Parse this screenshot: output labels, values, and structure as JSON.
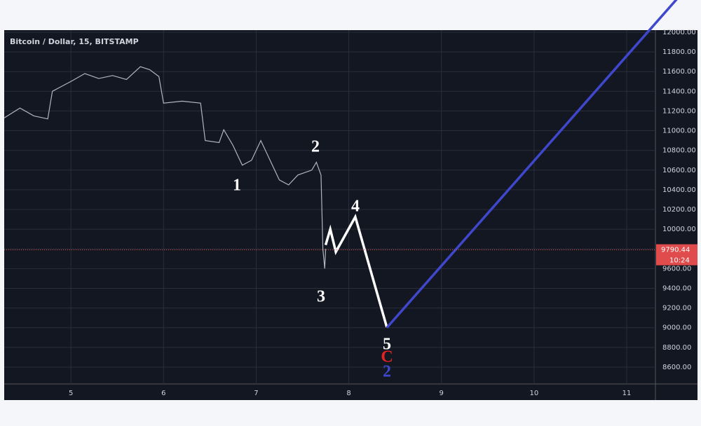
{
  "chart_data": {
    "type": "line",
    "title": "Bitcoin / Dollar, 15, BITSTAMP",
    "xlim": [
      4.28,
      11.31
    ],
    "ylim": [
      8429,
      12021
    ],
    "xticks": [
      5,
      6,
      7,
      8,
      9,
      10,
      11
    ],
    "yticks": [
      {
        "value": 8600,
        "label": "8600.00"
      },
      {
        "value": 8800,
        "label": "8800.00"
      },
      {
        "value": 9000,
        "label": "9000.00"
      },
      {
        "value": 9200,
        "label": "9200.00"
      },
      {
        "value": 9400,
        "label": "9400.00"
      },
      {
        "value": 9600,
        "label": "9600.00"
      },
      {
        "value": 9800,
        "label": "9800.00"
      },
      {
        "value": 10000,
        "label": "10000.00"
      },
      {
        "value": 10200,
        "label": "10200.00"
      },
      {
        "value": 10400,
        "label": "10400.00"
      },
      {
        "value": 10600,
        "label": "10600.00"
      },
      {
        "value": 10800,
        "label": "10800.00"
      },
      {
        "value": 11000,
        "label": "11000.00"
      },
      {
        "value": 11200,
        "label": "11200.00"
      },
      {
        "value": 11400,
        "label": "11400.00"
      },
      {
        "value": 11600,
        "label": "11600.00"
      },
      {
        "value": 11800,
        "label": "11800.00"
      },
      {
        "value": 12000,
        "label": "12000.00"
      }
    ],
    "grid": true,
    "series": [
      {
        "color": "#b2b5be",
        "x": [
          4.28,
          4.45,
          4.6,
          4.75,
          4.8,
          4.9,
          5.0,
          5.15,
          5.3,
          5.45,
          5.6,
          5.75,
          5.85,
          5.95,
          6.0,
          6.2,
          6.4,
          6.45,
          6.6,
          6.65,
          6.75,
          6.85,
          6.95,
          7.05,
          7.15,
          7.25,
          7.35,
          7.45,
          7.6,
          7.65,
          7.7,
          7.72,
          7.74,
          7.75
        ],
        "values": [
          11130,
          11230,
          11150,
          11120,
          11400,
          11450,
          11500,
          11580,
          11530,
          11560,
          11520,
          11650,
          11620,
          11550,
          11280,
          11300,
          11280,
          10900,
          10880,
          11010,
          10850,
          10650,
          10700,
          10900,
          10700,
          10500,
          10450,
          10550,
          10600,
          10680,
          10550,
          9800,
          9600,
          9800
        ]
      },
      {
        "color": "#ffffff",
        "x": [
          7.75,
          7.8,
          7.86,
          8.07,
          8.41
        ],
        "values": [
          9840,
          10000,
          9770,
          10125,
          9006
        ]
      },
      {
        "color": "#3f48cc",
        "x": [
          8.41,
          11.54
        ],
        "values": [
          9000,
          12335
        ]
      }
    ],
    "last_price": 9790.44,
    "countdown": "10:24",
    "annotations": [
      "1",
      "2",
      "3",
      "4",
      "5",
      "C",
      "2"
    ]
  }
}
